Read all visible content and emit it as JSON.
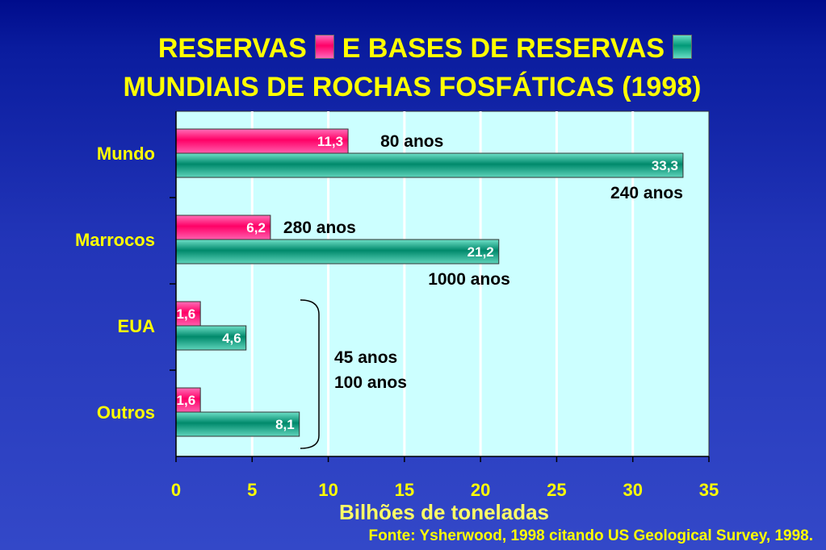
{
  "title": {
    "line1_part1": "RESERVAS",
    "line1_part2": "E BASES DE RESERVAS",
    "line2": "MUNDIAIS DE ROCHAS FOSFÁTICAS  (1998)"
  },
  "source": "Fonte: Ysherwood, 1998 citando US Geological Survey, 1998.",
  "colors": {
    "reservas": "#ff0066",
    "bases": "#009977",
    "plot_bg": "#ccffff",
    "text": "#ffff00"
  },
  "chart_data": {
    "type": "bar",
    "orientation": "horizontal",
    "categories": [
      "Mundo",
      "Marrocos",
      "EUA",
      "Outros"
    ],
    "series": [
      {
        "values": [
          11.3,
          6.2,
          1.6,
          1.6
        ],
        "labels": [
          "11,3",
          "6,2",
          "1,6",
          "1,6"
        ]
      },
      {
        "values": [
          33.3,
          21.2,
          4.6,
          8.1
        ],
        "labels": [
          "33,3",
          "21,2",
          "4,6",
          "8,1"
        ]
      }
    ],
    "xlabel": "Bilhões de toneladas",
    "xlim": [
      0,
      35
    ],
    "xticks": [
      "0",
      "5",
      "10",
      "15",
      "20",
      "25",
      "30",
      "35"
    ],
    "grid": true,
    "annotations": [
      "80 anos",
      "240 anos",
      "280 anos",
      "1000 anos",
      "45 anos",
      "100 anos"
    ]
  }
}
